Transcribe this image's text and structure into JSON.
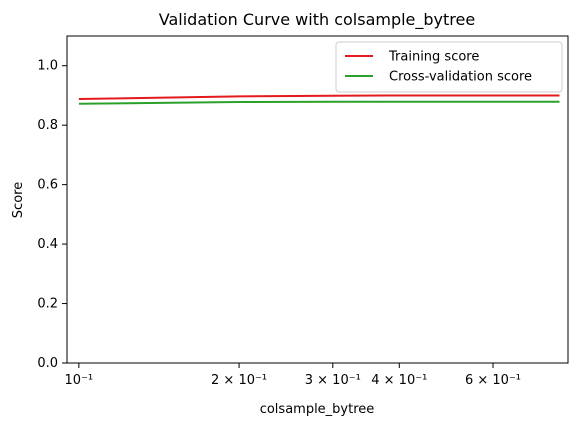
{
  "chart_data": {
    "type": "line",
    "title": "Validation Curve with colsample_bytree",
    "xlabel": "colsample_bytree",
    "ylabel": "Score",
    "xscale": "log",
    "xlim": [
      0.095,
      0.83
    ],
    "ylim": [
      0.0,
      1.1
    ],
    "grid": false,
    "legend_position": "top-right",
    "x": [
      0.1,
      0.2,
      0.3,
      0.4,
      0.5,
      0.6,
      0.7,
      0.8
    ],
    "x_ticks": [
      {
        "value": 0.1,
        "label": "10⁻¹"
      },
      {
        "value": 0.2,
        "label": "2 × 10⁻¹"
      },
      {
        "value": 0.3,
        "label": "3 × 10⁻¹"
      },
      {
        "value": 0.4,
        "label": "4 × 10⁻¹"
      },
      {
        "value": 0.6,
        "label": "6 × 10⁻¹"
      }
    ],
    "y_ticks": [
      {
        "value": 0.0,
        "label": "0.0"
      },
      {
        "value": 0.2,
        "label": "0.2"
      },
      {
        "value": 0.4,
        "label": "0.4"
      },
      {
        "value": 0.6,
        "label": "0.6"
      },
      {
        "value": 0.8,
        "label": "0.8"
      },
      {
        "value": 1.0,
        "label": "1.0"
      }
    ],
    "series": [
      {
        "name": "Training score",
        "color": "#e41a1c",
        "values": [
          0.888,
          0.897,
          0.899,
          0.9,
          0.9,
          0.9,
          0.9,
          0.9
        ]
      },
      {
        "name": "Cross-validation score",
        "color": "#2ca02c",
        "values": [
          0.872,
          0.878,
          0.879,
          0.879,
          0.879,
          0.879,
          0.879,
          0.879
        ]
      }
    ]
  }
}
